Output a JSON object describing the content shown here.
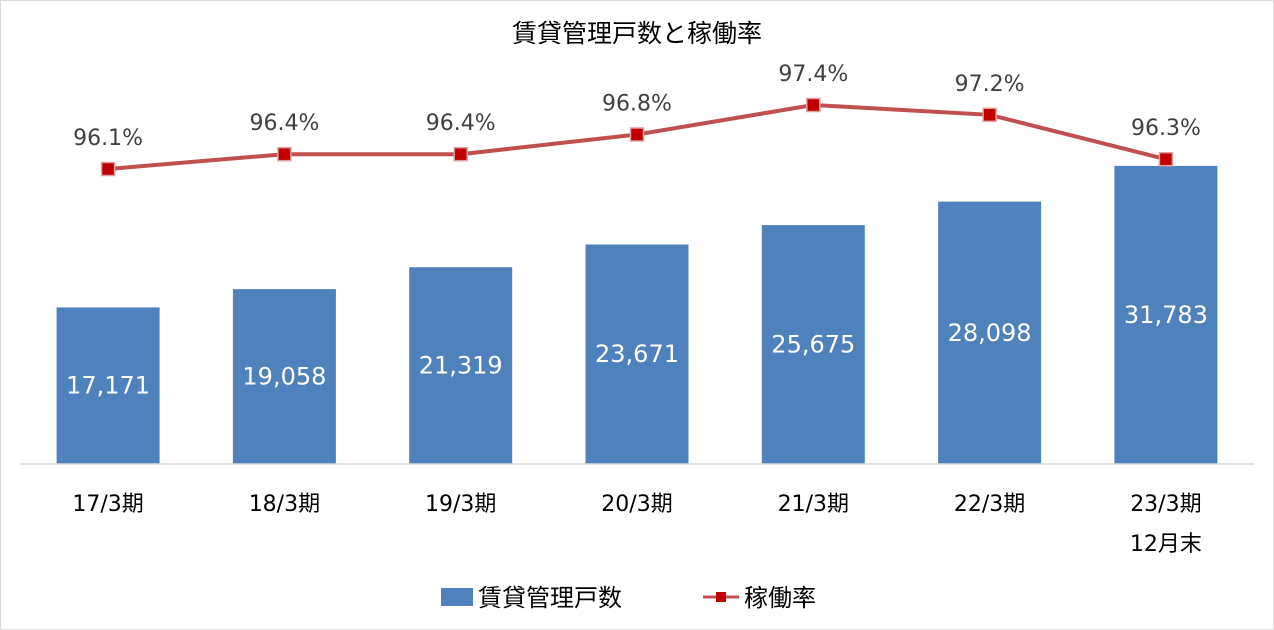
{
  "chart_data": {
    "type": "bar",
    "title": "賃貸管理戸数と稼働率",
    "categories": [
      [
        "17/3期"
      ],
      [
        "18/3期"
      ],
      [
        "19/3期"
      ],
      [
        "20/3期"
      ],
      [
        "21/3期"
      ],
      [
        "22/3期"
      ],
      [
        "23/3期",
        "12月末"
      ]
    ],
    "series": [
      {
        "name": "賃貸管理戸数",
        "type": "bar",
        "color": "#4f81bd",
        "values": [
          17171,
          19058,
          21319,
          23671,
          25675,
          28098,
          31783
        ],
        "labels": [
          "17,171",
          "19,058",
          "21,319",
          "23,671",
          "25,675",
          "28,098",
          "31,783"
        ]
      },
      {
        "name": "稼働率",
        "type": "line",
        "color": "#c0504d",
        "marker_color": "#c00000",
        "values": [
          96.1,
          96.4,
          96.4,
          96.8,
          97.4,
          97.2,
          96.3
        ],
        "labels": [
          "96.1%",
          "96.4%",
          "96.4%",
          "96.8%",
          "97.4%",
          "97.2%",
          "96.3%"
        ]
      }
    ],
    "legend_position": "bottom",
    "grid": false
  }
}
